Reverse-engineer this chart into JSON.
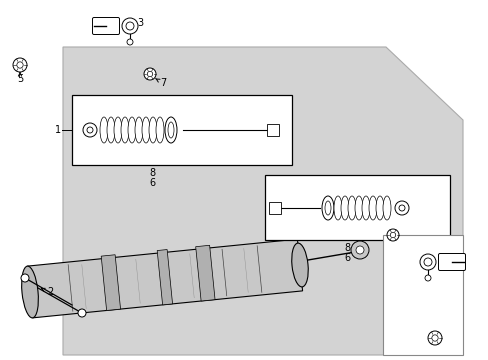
{
  "bg_color": "#d3d3d3",
  "white": "#ffffff",
  "black": "#000000",
  "figsize": [
    4.89,
    3.6
  ],
  "dpi": 100,
  "gray_fill": "#cccccc",
  "part_gray": "#e8e8e8",
  "dark_gray": "#555555",
  "mid_gray": "#999999"
}
